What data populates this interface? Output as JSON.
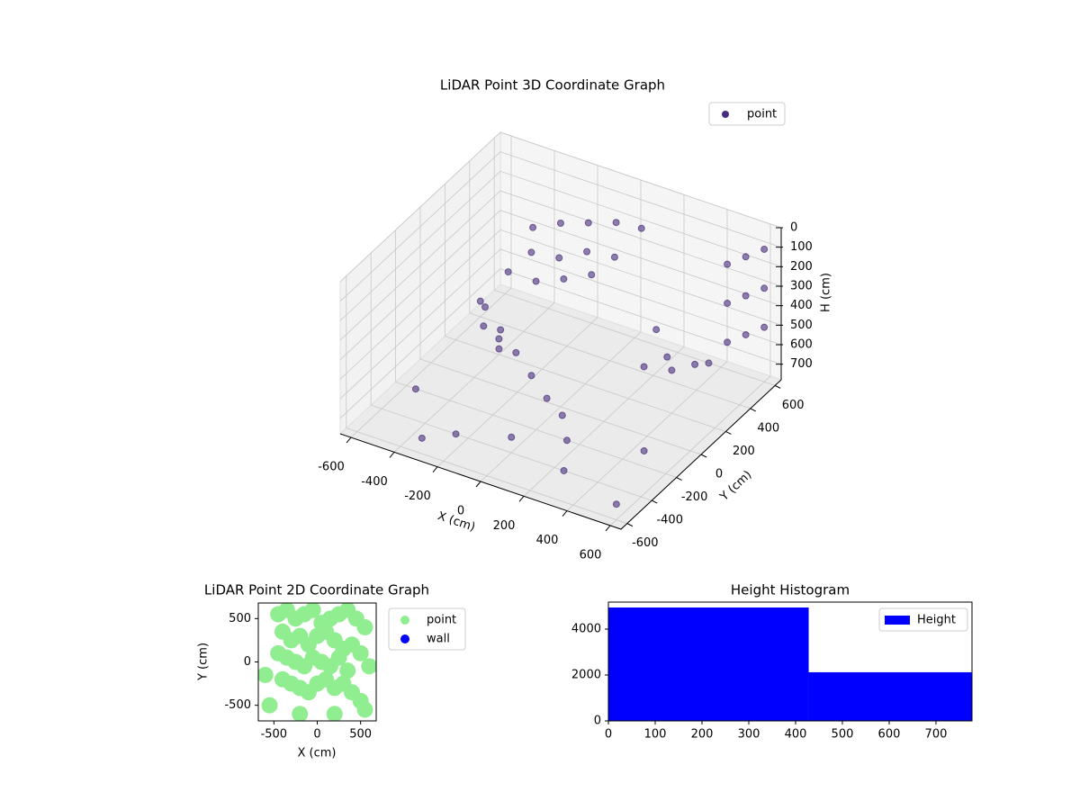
{
  "chart_data": [
    {
      "type": "scatter3d",
      "title": "LiDAR Point 3D Coordinate Graph",
      "xlabel": "X (cm)",
      "ylabel": "Y (cm)",
      "zlabel": "H (cm)",
      "xlim": [
        -650,
        650
      ],
      "ylim": [
        -650,
        650
      ],
      "zlim": [
        780,
        0
      ],
      "xticks": [
        -600,
        -400,
        -200,
        0,
        200,
        400,
        600
      ],
      "yticks": [
        -600,
        -400,
        -200,
        0,
        200,
        400,
        600
      ],
      "zticks": [
        0,
        100,
        200,
        300,
        400,
        500,
        600,
        700
      ],
      "grid": true,
      "legend": "upper right",
      "series": [
        {
          "name": "point",
          "color": "#472d7b",
          "x": [
            -300,
            -200,
            -100,
            0,
            100,
            -250,
            -150,
            -50,
            50,
            -300,
            -200,
            -100,
            0,
            -350,
            -250,
            -150,
            -50,
            50,
            150,
            -300,
            -200,
            300,
            400,
            350,
            450,
            600,
            600,
            600,
            600,
            600,
            600,
            600,
            600,
            600,
            -500,
            -400,
            -200,
            0,
            200,
            300,
            500,
            -600,
            100,
            400,
            -300,
            600
          ],
          "y": [
            300,
            350,
            400,
            450,
            480,
            200,
            250,
            300,
            350,
            100,
            150,
            200,
            250,
            0,
            -50,
            -100,
            -150,
            -200,
            -250,
            -100,
            -150,
            150,
            200,
            250,
            300,
            300,
            300,
            300,
            450,
            450,
            450,
            600,
            600,
            600,
            -300,
            200,
            -500,
            -400,
            -300,
            -500,
            -200,
            400,
            600,
            500,
            -600,
            -600
          ],
          "z": [
            150,
            120,
            110,
            100,
            110,
            200,
            220,
            180,
            200,
            260,
            300,
            280,
            250,
            400,
            450,
            500,
            550,
            600,
            620,
            420,
            470,
            550,
            560,
            540,
            570,
            0,
            200,
            400,
            50,
            250,
            450,
            100,
            300,
            500,
            700,
            700,
            700,
            700,
            700,
            700,
            700,
            700,
            700,
            700,
            700,
            700
          ]
        }
      ]
    },
    {
      "type": "scatter",
      "title": "LiDAR Point 2D Coordinate Graph",
      "xlabel": "X (cm)",
      "ylabel": "Y (cm)",
      "xlim": [
        -680,
        680
      ],
      "ylim": [
        -680,
        680
      ],
      "xticks": [
        -500,
        0,
        500
      ],
      "yticks": [
        -500,
        0,
        500
      ],
      "legend": "outside right",
      "series": [
        {
          "name": "point",
          "color": "#90ee90",
          "x": [
            -450,
            -350,
            -250,
            -150,
            -50,
            50,
            150,
            250,
            350,
            450,
            550,
            -400,
            -300,
            -200,
            -100,
            0,
            100,
            200,
            300,
            400,
            500,
            -450,
            -350,
            -250,
            -150,
            -50,
            50,
            150,
            250,
            350,
            -400,
            -300,
            -200,
            -100,
            0,
            100,
            200,
            300,
            400,
            500,
            -600,
            600,
            -550,
            550,
            -200,
            200
          ],
          "y": [
            550,
            600,
            500,
            550,
            600,
            450,
            500,
            550,
            600,
            500,
            400,
            350,
            250,
            300,
            200,
            300,
            350,
            250,
            150,
            200,
            100,
            100,
            50,
            0,
            -50,
            50,
            0,
            -50,
            50,
            -100,
            -200,
            -250,
            -300,
            -350,
            -250,
            -200,
            -300,
            -250,
            -350,
            -450,
            -150,
            -50,
            -500,
            -550,
            -600,
            -600
          ]
        },
        {
          "name": "wall",
          "color": "#0000ff",
          "x": [],
          "y": []
        }
      ]
    },
    {
      "type": "histogram",
      "title": "Height Histogram",
      "bins": [
        0,
        428,
        777
      ],
      "counts": [
        4940,
        2120
      ],
      "color": "#0000ff",
      "name": "Height",
      "xlim": [
        0,
        777
      ],
      "ylim": [
        0,
        5176
      ],
      "xticks": [
        0,
        100,
        200,
        300,
        400,
        500,
        600,
        700
      ],
      "yticks": [
        0,
        2000,
        4000
      ],
      "legend": "upper right"
    }
  ]
}
